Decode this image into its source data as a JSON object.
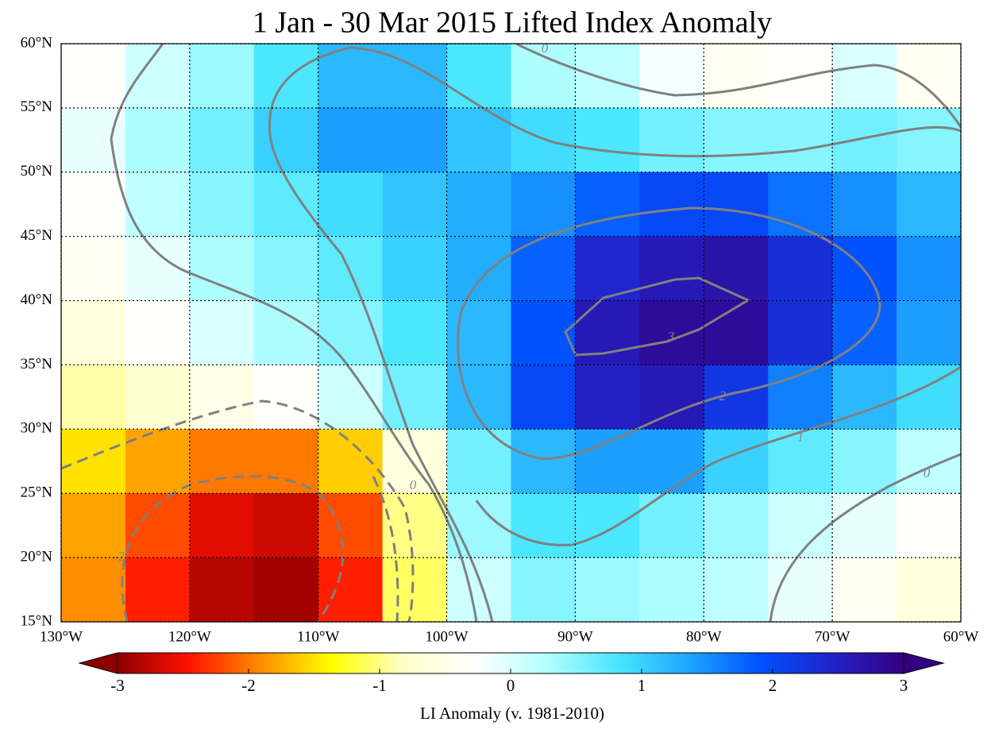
{
  "chart_data": {
    "type": "heatmap",
    "title": "1 Jan - 30 Mar 2015 Lifted Index Anomaly",
    "colorbar_label": "LI Anomaly (v. 1981-2010)",
    "x": [
      -127.5,
      -122.5,
      -117.5,
      -112.5,
      -107.5,
      -102.5,
      -97.5,
      -92.5,
      -87.5,
      -82.5,
      -77.5,
      -72.5,
      -67.5,
      -62.5
    ],
    "y": [
      57.5,
      52.5,
      47.5,
      42.5,
      37.5,
      32.5,
      27.5,
      22.5,
      17.5
    ],
    "values": [
      [
        -0.3,
        0.1,
        0.4,
        0.8,
        1.2,
        1.2,
        0.8,
        0.3,
        0.2,
        -0.2,
        -0.4,
        -0.3,
        0.0,
        -0.4
      ],
      [
        -0.1,
        0.3,
        0.6,
        1.0,
        1.4,
        1.4,
        1.1,
        0.9,
        0.8,
        0.6,
        0.5,
        0.5,
        0.6,
        0.5
      ],
      [
        -0.3,
        0.2,
        0.5,
        0.7,
        0.9,
        1.1,
        1.3,
        1.5,
        1.8,
        2.0,
        2.0,
        1.7,
        1.5,
        1.2
      ],
      [
        -0.4,
        -0.1,
        0.3,
        0.5,
        0.7,
        1.0,
        1.3,
        1.8,
        2.4,
        2.6,
        2.7,
        2.3,
        1.9,
        1.5
      ],
      [
        -0.6,
        -0.3,
        0.0,
        0.3,
        0.5,
        0.8,
        1.2,
        1.9,
        2.6,
        2.8,
        2.8,
        2.3,
        1.8,
        1.4
      ],
      [
        -0.9,
        -0.7,
        -0.5,
        -0.3,
        0.1,
        0.6,
        1.2,
        2.0,
        2.5,
        2.6,
        2.2,
        1.6,
        1.2,
        0.9
      ],
      [
        -1.5,
        -1.8,
        -2.0,
        -2.0,
        -1.6,
        -0.6,
        0.6,
        1.2,
        1.4,
        1.4,
        1.0,
        0.7,
        0.5,
        0.2
      ],
      [
        -1.8,
        -2.2,
        -2.6,
        -2.7,
        -2.2,
        -1.0,
        0.4,
        0.8,
        0.8,
        0.6,
        0.4,
        0.1,
        -0.1,
        -0.3
      ],
      [
        -1.9,
        -2.4,
        -2.8,
        -2.9,
        -2.4,
        -1.1,
        0.1,
        0.5,
        0.4,
        0.3,
        0.2,
        -0.1,
        -0.4,
        -0.6
      ]
    ],
    "xlim": [
      -130,
      -60
    ],
    "ylim": [
      15,
      60
    ],
    "xticks": [
      {
        "value": -130,
        "label": "130°W"
      },
      {
        "value": -120,
        "label": "120°W"
      },
      {
        "value": -110,
        "label": "110°W"
      },
      {
        "value": -100,
        "label": "100°W"
      },
      {
        "value": -90,
        "label": "90°W"
      },
      {
        "value": -80,
        "label": "80°W"
      },
      {
        "value": -70,
        "label": "70°W"
      },
      {
        "value": -60,
        "label": "60°W"
      }
    ],
    "yticks": [
      {
        "value": 15,
        "label": "15°N"
      },
      {
        "value": 20,
        "label": "20°N"
      },
      {
        "value": 25,
        "label": "25°N"
      },
      {
        "value": 30,
        "label": "30°N"
      },
      {
        "value": 35,
        "label": "35°N"
      },
      {
        "value": 40,
        "label": "40°N"
      },
      {
        "value": 45,
        "label": "45°N"
      },
      {
        "value": 50,
        "label": "50°N"
      },
      {
        "value": 55,
        "label": "55°N"
      },
      {
        "value": 60,
        "label": "60°N"
      }
    ],
    "grid": true,
    "clim": [
      -3,
      3
    ],
    "cticks": [
      -3,
      -2,
      -1,
      0,
      1,
      2,
      3
    ],
    "colormap": [
      "#8c0000",
      "#ff1200",
      "#ff8c00",
      "#ffff00",
      "#ffffc8",
      "#ffffff",
      "#b4ffff",
      "#48e6ff",
      "#1ea5ff",
      "#0050ff",
      "#2222c8",
      "#34007f"
    ],
    "contours": [
      {
        "level": 0
      },
      {
        "level": 0
      },
      {
        "level": 0
      },
      {
        "level": 0
      },
      {
        "level": 1
      },
      {
        "level": 1
      },
      {
        "level": 2
      },
      {
        "level": 3
      },
      {
        "level": -1
      },
      {
        "level": -2
      }
    ]
  }
}
